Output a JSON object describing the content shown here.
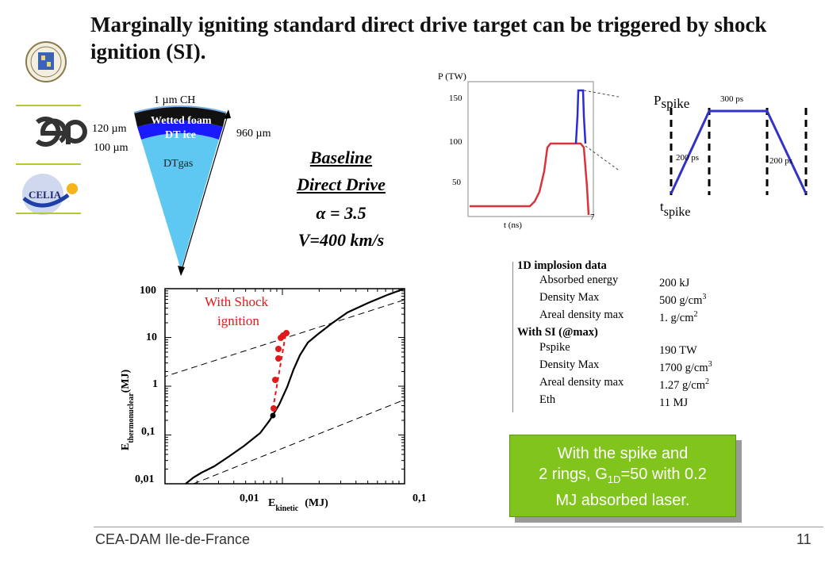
{
  "slide": {
    "title": "Marginally igniting standard direct drive target can be triggered by shock ignition (SI).",
    "footer": "CEA-DAM Ile-de-France",
    "page_number": "11"
  },
  "logos": [
    "university-seal-logo",
    "cea-logo",
    "celia-logo"
  ],
  "target_diagram": {
    "layer_top_label": "1 µm CH",
    "wetted_foam_label": "Wetted foam",
    "dt_ice_label": "DT ice",
    "dt_gas_label": "DTgas",
    "thickness_120": "120 µm",
    "thickness_100": "100 µm",
    "radius_label": "960 µm",
    "colors": {
      "foam": "#111111",
      "ice": "#1a1aff",
      "gas": "#5ec8f2"
    }
  },
  "baseline": {
    "line1": "Baseline",
    "line2": "Direct Drive",
    "alpha": "α = 3.5",
    "velocity": "V=400 km/s"
  },
  "pulse_chart": {
    "y_label": "P (TW)",
    "x_label": "t (ns)",
    "y_ticks": [
      "150",
      "100",
      "50"
    ],
    "x_tick": "7",
    "base_color": "#d9323b",
    "spike_color": "#2b2bd9"
  },
  "spike_diagram": {
    "p_spike_label": "P",
    "p_spike_sub": "spike",
    "t_spike_label": "t",
    "t_spike_sub": "spike",
    "top_duration": "300 ps",
    "rise_duration": "200 ps",
    "fall_duration": "200 ps",
    "color": "#3232c8"
  },
  "energy_chart": {
    "y_label_main": "E",
    "y_label_sub": "thermonuclear",
    "y_label_unit": "(MJ)",
    "x_label_main": "E",
    "x_label_sub": "kinetic",
    "x_label_unit": "(MJ)",
    "y_ticks": [
      "100",
      "10",
      "1",
      "0,1",
      "0,01"
    ],
    "x_ticks": [
      "0,01",
      "0,1"
    ],
    "annotation_line1": "With Shock",
    "annotation_line2": "ignition",
    "annotation_color": "#e0191b"
  },
  "implosion_table": {
    "header1": "1D implosion data",
    "rows1": [
      {
        "label": "Absorbed energy",
        "value": "200 kJ",
        "sup": ""
      },
      {
        "label": "Density Max",
        "value": "500 g/cm",
        "sup": "3"
      },
      {
        "label": "Areal density max",
        "value": "1. g/cm",
        "sup": "2"
      }
    ],
    "header2": "With SI (@max)",
    "rows2": [
      {
        "label": "Pspike",
        "value": "190 TW",
        "sup": ""
      },
      {
        "label": "Density Max",
        "value": "1700 g/cm",
        "sup": "3"
      },
      {
        "label": "Areal density max",
        "value": "1.27 g/cm",
        "sup": "2"
      },
      {
        "label": "Eth",
        "value": "11 MJ",
        "sup": ""
      }
    ]
  },
  "green_box": {
    "line1": "With the spike and",
    "line2_pre": "2 rings, G",
    "line2_sub": "1D",
    "line2_post": "=50 with 0.2",
    "line3": "MJ absorbed laser.",
    "color": "#80c41c"
  }
}
